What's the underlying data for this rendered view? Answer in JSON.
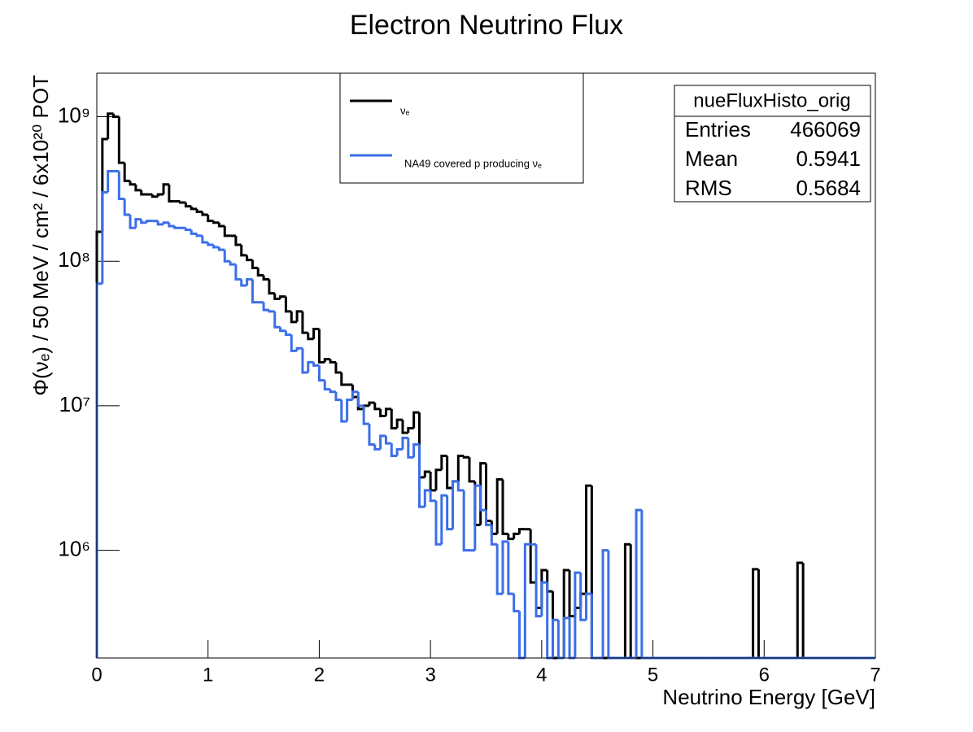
{
  "chart_data": {
    "type": "histogram",
    "title": "Electron Neutrino Flux",
    "x_label": "Neutrino Energy [GeV]",
    "y_label": "Φ(νₑ) / 50 MeV / cm² / 6x10²⁰ POT",
    "xlim": [
      0,
      7
    ],
    "xticks": [
      0,
      1,
      2,
      3,
      4,
      5,
      6,
      7
    ],
    "ylim": [
      180000,
      2000000000
    ],
    "log_y": true,
    "yticks": [
      {
        "value": 1000000,
        "label": "10⁶"
      },
      {
        "value": 10000000,
        "label": "10⁷"
      },
      {
        "value": 100000000,
        "label": "10⁸"
      },
      {
        "value": 1000000000,
        "label": "10⁹"
      }
    ],
    "bins": [
      0,
      0.05,
      0.1,
      0.15,
      0.2,
      0.25,
      0.3,
      0.35,
      0.4,
      0.45,
      0.5,
      0.55,
      0.6,
      0.65,
      0.7,
      0.75,
      0.8,
      0.85,
      0.9,
      0.95,
      1,
      1.05,
      1.1,
      1.15,
      1.2,
      1.25,
      1.3,
      1.35,
      1.4,
      1.45,
      1.5,
      1.55,
      1.6,
      1.65,
      1.7,
      1.75,
      1.8,
      1.85,
      1.9,
      1.95,
      2,
      2.05,
      2.1,
      2.15,
      2.2,
      2.25,
      2.3,
      2.35,
      2.4,
      2.45,
      2.5,
      2.55,
      2.6,
      2.65,
      2.7,
      2.75,
      2.8,
      2.85,
      2.9,
      2.95,
      3,
      3.05,
      3.1,
      3.15,
      3.2,
      3.25,
      3.3,
      3.35,
      3.4,
      3.45,
      3.5,
      3.55,
      3.6,
      3.65,
      3.7,
      3.75,
      3.8,
      3.85,
      3.9,
      3.95,
      4,
      4.05,
      4.1,
      4.15,
      4.2,
      4.25,
      4.3,
      4.35,
      4.4,
      4.45,
      4.5,
      4.55,
      4.6,
      4.65,
      4.7,
      4.75,
      4.8,
      4.85,
      4.9,
      4.95,
      5,
      5.05,
      5.1,
      5.15,
      5.2,
      5.25,
      5.3,
      5.35,
      5.4,
      5.45,
      5.5,
      5.55,
      5.6,
      5.65,
      5.7,
      5.75,
      5.8,
      5.85,
      5.9,
      5.95,
      6,
      6.05,
      6.1,
      6.15,
      6.2,
      6.25,
      6.3,
      6.35,
      6.4,
      6.45,
      6.5,
      6.55,
      6.6,
      6.65,
      6.7,
      6.75,
      6.8,
      6.85,
      6.9,
      6.95,
      7
    ],
    "series": [
      {
        "name": "νₑ",
        "color": "#000000",
        "values": [
          160000000.0,
          700000000.0,
          1050000000.0,
          1000000000.0,
          480000000.0,
          360000000.0,
          340000000.0,
          310000000.0,
          290000000.0,
          290000000.0,
          280000000.0,
          290000000.0,
          340000000.0,
          260000000.0,
          260000000.0,
          255000000.0,
          240000000.0,
          230000000.0,
          220000000.0,
          210000000.0,
          190000000.0,
          185000000.0,
          175000000.0,
          150000000.0,
          150000000.0,
          130000000.0,
          110000000.0,
          102000000.0,
          90000000.0,
          80000000.0,
          75000000.0,
          60000000.0,
          55000000.0,
          57000000.0,
          45000000.0,
          38000000.0,
          45000000.0,
          32000000.0,
          29000000.0,
          34000000.0,
          20000000.0,
          21000000.0,
          20000000.0,
          17000000.0,
          14000000.0,
          14000000.0,
          11500000.0,
          9500000.0,
          10000000.0,
          10500000.0,
          9500000.0,
          8500000.0,
          9500000.0,
          7000000.0,
          8000000.0,
          6500000.0,
          7000000.0,
          9000000.0,
          3200000.0,
          3500000.0,
          2600000.0,
          3600000.0,
          4500000.0,
          2700000.0,
          3000000.0,
          4500000.0,
          4400000.0,
          3000000.0,
          1500000.0,
          4000000.0,
          1600000.0,
          1300000.0,
          3100000.0,
          1300000.0,
          1200000.0,
          1300000.0,
          1400000.0,
          1400000.0,
          600000.0,
          400000.0,
          730000.0,
          520000.0,
          0,
          0,
          730000.0,
          350000.0,
          400000.0,
          500000.0,
          2800000.0,
          0,
          0,
          0,
          0,
          0,
          0,
          1100000.0,
          0,
          0,
          0,
          0,
          0,
          0,
          0,
          0,
          0,
          0,
          0,
          0,
          0,
          0,
          0,
          0,
          0,
          0,
          0,
          0,
          0,
          0,
          740000.0,
          0,
          0,
          0,
          0,
          0,
          0,
          0,
          820000.0,
          0,
          0,
          0,
          0,
          0,
          0,
          0,
          0,
          0,
          0,
          0,
          0,
          0
        ]
      },
      {
        "name": "NA49 covered p producing νₑ",
        "color": "#3b6fe8",
        "values": [
          70000000.0,
          300000000.0,
          420000000.0,
          420000000.0,
          270000000.0,
          210000000.0,
          170000000.0,
          195000000.0,
          185000000.0,
          190000000.0,
          190000000.0,
          180000000.0,
          185000000.0,
          175000000.0,
          170000000.0,
          170000000.0,
          165000000.0,
          155000000.0,
          150000000.0,
          135000000.0,
          130000000.0,
          125000000.0,
          120000000.0,
          100000000.0,
          95000000.0,
          75000000.0,
          68000000.0,
          75000000.0,
          52000000.0,
          52000000.0,
          46000000.0,
          45000000.0,
          35000000.0,
          33000000.0,
          31000000.0,
          24000000.0,
          25000000.0,
          17000000.0,
          20000000.0,
          19000000.0,
          15000000.0,
          13000000.0,
          12500000.0,
          11000000.0,
          7800000.0,
          11000000.0,
          12500000.0,
          10000000.0,
          7500000.0,
          5400000.0,
          5000000.0,
          6200000.0,
          5500000.0,
          4500000.0,
          5000000.0,
          6000000.0,
          4400000.0,
          5400000.0,
          2000000.0,
          2600000.0,
          2200000.0,
          1100000.0,
          2400000.0,
          1400000.0,
          3000000.0,
          2600000.0,
          1000000.0,
          1000000.0,
          2800000.0,
          1900000.0,
          1500000.0,
          1100000.0,
          500000.0,
          1150000.0,
          500000.0,
          380000.0,
          0,
          1100000.0,
          1100000.0,
          350000.0,
          600000.0,
          0,
          330000.0,
          0,
          340000.0,
          0,
          700000.0,
          330000.0,
          500000.0,
          0,
          0,
          1000000.0,
          0,
          0,
          0,
          0,
          0,
          1900000.0,
          0,
          0,
          0,
          0,
          0,
          0,
          0,
          0,
          0,
          0,
          0,
          0,
          0,
          0,
          0,
          0,
          0,
          0,
          0,
          0,
          0,
          0,
          0,
          0,
          0,
          0,
          0,
          0,
          0,
          0,
          0,
          0,
          0,
          0,
          0,
          0,
          0,
          0,
          0,
          0,
          0,
          0
        ]
      }
    ],
    "stats": {
      "title": "nueFluxHisto_orig",
      "rows": [
        {
          "label": "Entries",
          "value": 466069
        },
        {
          "label": "Mean",
          "value": 0.5941
        },
        {
          "label": "RMS",
          "value": 0.5684
        }
      ]
    }
  }
}
